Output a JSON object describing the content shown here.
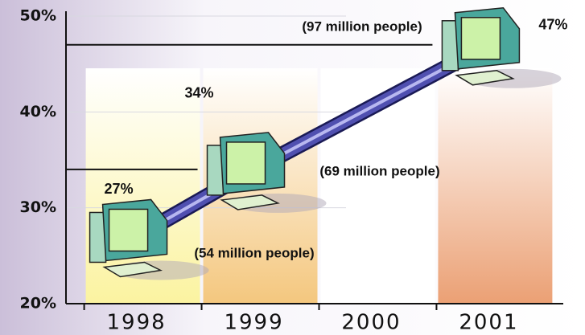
{
  "chart_data": {
    "type": "line",
    "x": [
      1998,
      1999,
      2001
    ],
    "series": [
      {
        "values": [
          27,
          34,
          47
        ],
        "value_labels": [
          "27%",
          "34%",
          "47%"
        ],
        "color": "#5050b0"
      }
    ],
    "annotations": [
      "(54 million people)",
      "(69 million people)",
      "(97 million people)"
    ],
    "xlim": [
      1997.4,
      2001.6
    ],
    "xticks": [
      1998,
      1999,
      2000,
      2001
    ],
    "ylim": [
      20,
      50
    ],
    "yticks": [
      {
        "value": 20,
        "label": "20%"
      },
      {
        "value": 30,
        "label": "30%"
      },
      {
        "value": 40,
        "label": "40%"
      },
      {
        "value": 50,
        "label": "50%"
      }
    ]
  }
}
